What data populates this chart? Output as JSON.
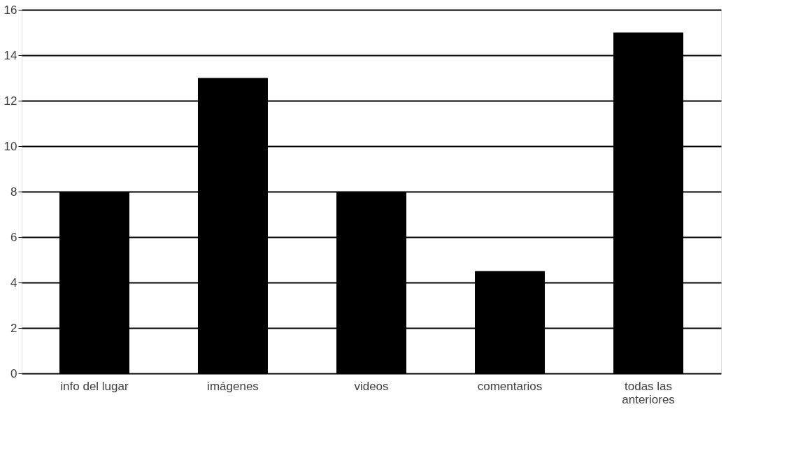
{
  "chart_data": {
    "type": "bar",
    "categories": [
      "info del lugar",
      "imágenes",
      "videos",
      "comentarios",
      "todas las anteriores"
    ],
    "series": [
      {
        "color": "#000000",
        "values": [
          8,
          13,
          8,
          4.5,
          15
        ]
      }
    ],
    "ylim": [
      0,
      16
    ],
    "yticks": [
      0,
      2,
      4,
      6,
      8,
      10,
      12,
      14,
      16
    ],
    "grid": "y",
    "legend": false
  }
}
